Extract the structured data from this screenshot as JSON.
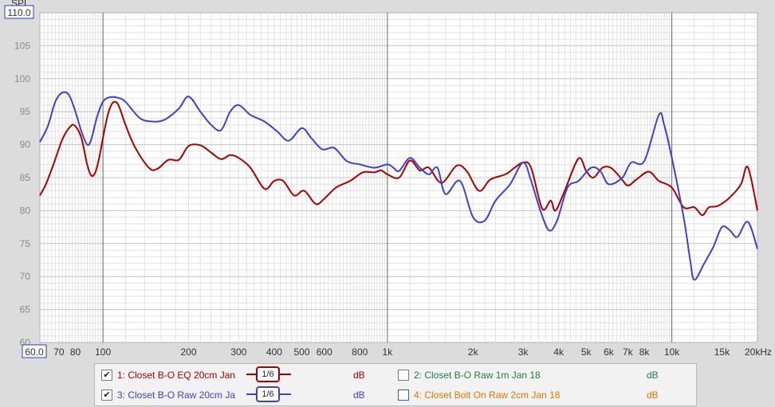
{
  "chart_data": {
    "type": "line",
    "ylabel": "SPL",
    "xlim": [
      60,
      20000
    ],
    "ylim": [
      60,
      110
    ],
    "x_scale": "log",
    "grid": true,
    "y_ticks": [
      "65",
      "70",
      "75",
      "80",
      "85",
      "90",
      "95",
      "100",
      "105"
    ],
    "y_min_label": "60",
    "y_max_label": "110.0",
    "x_min_label": "60.0",
    "x_ticks": [
      {
        "label": "70",
        "value": 70
      },
      {
        "label": "80",
        "value": 80
      },
      {
        "label": "100",
        "value": 100
      },
      {
        "label": "200",
        "value": 200
      },
      {
        "label": "300",
        "value": 300
      },
      {
        "label": "400",
        "value": 400
      },
      {
        "label": "500",
        "value": 500
      },
      {
        "label": "600",
        "value": 600
      },
      {
        "label": "800",
        "value": 800
      },
      {
        "label": "1k",
        "value": 1000
      },
      {
        "label": "2k",
        "value": 2000
      },
      {
        "label": "3k",
        "value": 3000
      },
      {
        "label": "4k",
        "value": 4000
      },
      {
        "label": "5k",
        "value": 5000
      },
      {
        "label": "6k",
        "value": 6000
      },
      {
        "label": "7k",
        "value": 7000
      },
      {
        "label": "8k",
        "value": 8000
      },
      {
        "label": "10k",
        "value": 10000
      },
      {
        "label": "15k",
        "value": 15000
      },
      {
        "label": "20kHz",
        "value": 20000
      }
    ],
    "series": [
      {
        "name": "1: Closet B-O EQ 20cm Jan",
        "color": "#aa0000",
        "points": [
          [
            60,
            82.3
          ],
          [
            63,
            84
          ],
          [
            67,
            87
          ],
          [
            72,
            90.8
          ],
          [
            77,
            92.8
          ],
          [
            80,
            92.8
          ],
          [
            84,
            91
          ],
          [
            88,
            87
          ],
          [
            91,
            85.3
          ],
          [
            94,
            85.8
          ],
          [
            97,
            88
          ],
          [
            100,
            91
          ],
          [
            104,
            94.5
          ],
          [
            108,
            96.3
          ],
          [
            113,
            96.1
          ],
          [
            120,
            93
          ],
          [
            130,
            89.5
          ],
          [
            145,
            86.5
          ],
          [
            155,
            86.3
          ],
          [
            170,
            87.7
          ],
          [
            185,
            87.7
          ],
          [
            200,
            89.8
          ],
          [
            220,
            89.9
          ],
          [
            240,
            88.8
          ],
          [
            260,
            87.8
          ],
          [
            280,
            88.4
          ],
          [
            300,
            88
          ],
          [
            330,
            86.5
          ],
          [
            370,
            83.3
          ],
          [
            400,
            84.5
          ],
          [
            430,
            84.5
          ],
          [
            470,
            82.3
          ],
          [
            510,
            83
          ],
          [
            560,
            81
          ],
          [
            600,
            81.8
          ],
          [
            660,
            83.5
          ],
          [
            740,
            84.5
          ],
          [
            820,
            85.8
          ],
          [
            900,
            85.8
          ],
          [
            950,
            86.1
          ],
          [
            1000,
            85.5
          ],
          [
            1100,
            85
          ],
          [
            1200,
            87.6
          ],
          [
            1300,
            86.1
          ],
          [
            1400,
            86.5
          ],
          [
            1550,
            84.2
          ],
          [
            1750,
            86.8
          ],
          [
            1900,
            86
          ],
          [
            2100,
            83
          ],
          [
            2300,
            84.7
          ],
          [
            2600,
            85.5
          ],
          [
            2800,
            86.5
          ],
          [
            3000,
            87.3
          ],
          [
            3200,
            86.5
          ],
          [
            3500,
            80.3
          ],
          [
            3750,
            81.5
          ],
          [
            3900,
            80
          ],
          [
            4200,
            83
          ],
          [
            4700,
            87.9
          ],
          [
            5000,
            86
          ],
          [
            5300,
            85
          ],
          [
            5700,
            86.5
          ],
          [
            6100,
            86.5
          ],
          [
            6600,
            85
          ],
          [
            7000,
            83.8
          ],
          [
            7500,
            84.7
          ],
          [
            8300,
            85.9
          ],
          [
            9000,
            84.5
          ],
          [
            10000,
            83.5
          ],
          [
            11000,
            80.5
          ],
          [
            12000,
            80.5
          ],
          [
            12800,
            79.3
          ],
          [
            13500,
            80.5
          ],
          [
            14500,
            80.7
          ],
          [
            16000,
            82
          ],
          [
            17500,
            84
          ],
          [
            18500,
            86.6
          ],
          [
            20000,
            80
          ]
        ]
      },
      {
        "name": "3: Closet B-O Raw 20cm Ja",
        "color": "#4040d0",
        "points": [
          [
            60,
            90.4
          ],
          [
            64,
            92.8
          ],
          [
            68,
            96.5
          ],
          [
            72,
            97.9
          ],
          [
            76,
            97.5
          ],
          [
            80,
            95
          ],
          [
            84,
            92
          ],
          [
            88,
            90
          ],
          [
            91,
            90.8
          ],
          [
            95,
            94
          ],
          [
            100,
            96.5
          ],
          [
            106,
            97.2
          ],
          [
            113,
            97.1
          ],
          [
            120,
            96.5
          ],
          [
            135,
            94
          ],
          [
            150,
            93.5
          ],
          [
            165,
            93.8
          ],
          [
            185,
            95.5
          ],
          [
            200,
            97.3
          ],
          [
            220,
            95
          ],
          [
            240,
            93
          ],
          [
            260,
            92.2
          ],
          [
            280,
            95
          ],
          [
            300,
            96
          ],
          [
            330,
            94.5
          ],
          [
            370,
            93.5
          ],
          [
            410,
            92
          ],
          [
            450,
            90.6
          ],
          [
            500,
            92.5
          ],
          [
            540,
            91
          ],
          [
            590,
            89.3
          ],
          [
            650,
            89.5
          ],
          [
            720,
            87.5
          ],
          [
            800,
            87
          ],
          [
            900,
            86.5
          ],
          [
            1000,
            87
          ],
          [
            1050,
            86.5
          ],
          [
            1100,
            86
          ],
          [
            1200,
            88
          ],
          [
            1300,
            86.5
          ],
          [
            1400,
            85.5
          ],
          [
            1500,
            86.5
          ],
          [
            1600,
            82.5
          ],
          [
            1800,
            84.5
          ],
          [
            2000,
            79
          ],
          [
            2200,
            78.5
          ],
          [
            2400,
            81.5
          ],
          [
            2700,
            84
          ],
          [
            3000,
            87.3
          ],
          [
            3200,
            84.5
          ],
          [
            3450,
            80
          ],
          [
            3700,
            77
          ],
          [
            3950,
            78.5
          ],
          [
            4300,
            83.5
          ],
          [
            4700,
            84.5
          ],
          [
            5200,
            86.5
          ],
          [
            5600,
            86
          ],
          [
            6000,
            84
          ],
          [
            6700,
            85
          ],
          [
            7200,
            87.3
          ],
          [
            8000,
            87.5
          ],
          [
            9000,
            94.5
          ],
          [
            9400,
            93
          ],
          [
            10000,
            88
          ],
          [
            11000,
            79
          ],
          [
            11600,
            72.5
          ],
          [
            12000,
            69.5
          ],
          [
            13000,
            72
          ],
          [
            14000,
            74.5
          ],
          [
            15000,
            77.5
          ],
          [
            16000,
            77
          ],
          [
            17000,
            76
          ],
          [
            18500,
            78.3
          ],
          [
            20000,
            74.2
          ]
        ]
      }
    ],
    "legend_items": [
      {
        "label": "1: Closet B-O EQ 20cm Jan",
        "checked": true,
        "unit": "dB",
        "smoothing": "1/6",
        "color": "#aa0000"
      },
      {
        "label": "2: Closet B-O Raw 1m Jan 18",
        "checked": false,
        "unit": "dB",
        "color": "#208040"
      },
      {
        "label": "3: Closet B-O Raw 20cm Ja",
        "checked": true,
        "unit": "dB",
        "smoothing": "1/6",
        "color": "#4040d0"
      },
      {
        "label": "4: Closet Bolt On Raw 2cm Jan 18",
        "checked": false,
        "unit": "dB",
        "color": "#e07800"
      }
    ]
  },
  "colors": {
    "plot_bg": "#ffffff",
    "grid_minor": "#e2e2e2",
    "grid_major": "#6a6a6a",
    "frame": "#b0b0b0"
  }
}
